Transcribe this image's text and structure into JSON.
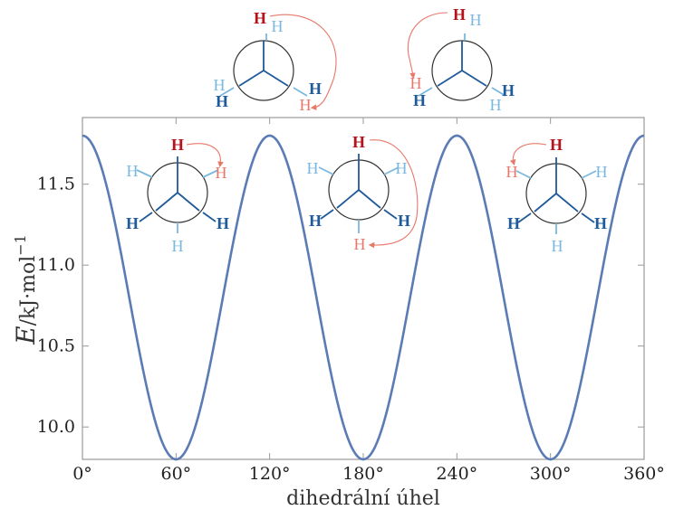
{
  "chart_data": {
    "type": "line",
    "xlabel": "dihedrální úhel",
    "ylabel_parts": {
      "italic": "E",
      "rest": "/kJ·mol",
      "sup": "−1"
    },
    "xlim": [
      0,
      360
    ],
    "ylim": [
      9.8,
      11.8
    ],
    "x_ticks": [
      0,
      60,
      120,
      180,
      240,
      300,
      360
    ],
    "x_tick_labels": [
      "0°",
      "60°",
      "120°",
      "180°",
      "240°",
      "300°",
      "360°"
    ],
    "y_ticks": [
      10.0,
      10.5,
      11.0,
      11.5
    ],
    "y_tick_labels": [
      "10.0",
      "10.5",
      "11.0",
      "11.5"
    ],
    "grid": false,
    "series": [
      {
        "function": "E = 10.8 + 1.0·cos(3θ)",
        "x": [
          0,
          30,
          60,
          90,
          120,
          150,
          180,
          210,
          240,
          270,
          300,
          330,
          360
        ],
        "y": [
          11.8,
          10.8,
          9.8,
          10.8,
          11.8,
          10.8,
          9.8,
          10.8,
          11.8,
          10.8,
          9.8,
          10.8,
          11.8
        ]
      }
    ],
    "colors": {
      "line": "#5b7bb5",
      "frame": "#999999",
      "h_dark_red": "#b5121b",
      "h_light_red": "#e8786a",
      "h_dark_blue": "#1f5a9a",
      "h_light_blue": "#7ab8e0",
      "arrow": "#e8786a",
      "bond_light": "#7ab8e0",
      "bond_dark": "#1f5a9a"
    },
    "annotations": {
      "atom_label": "H",
      "newman_projections": [
        {
          "id": "top-1",
          "dihedral": 0,
          "note": "eclipsed, rotation arrow"
        },
        {
          "id": "top-2",
          "dihedral": 0,
          "note": "eclipsed, rotation arrow"
        },
        {
          "id": "inside-60",
          "dihedral": 60,
          "note": "gauche"
        },
        {
          "id": "inside-180",
          "dihedral": 180,
          "note": "anti"
        },
        {
          "id": "inside-300",
          "dihedral": 300,
          "note": "gauche"
        }
      ]
    }
  }
}
